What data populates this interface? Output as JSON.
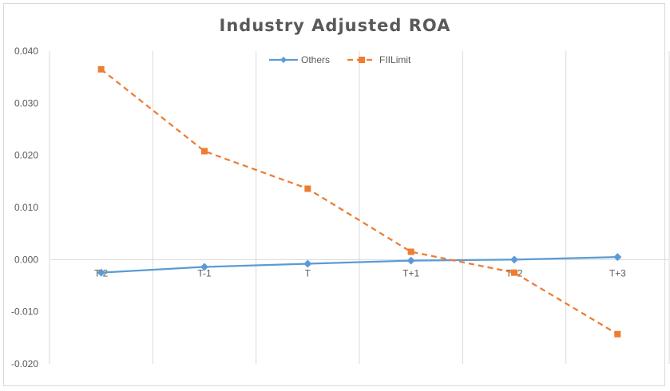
{
  "chart_data": {
    "type": "line",
    "title": "Industry Adjusted ROA",
    "xlabel": "",
    "ylabel": "",
    "categories": [
      "T-2",
      "T-1",
      "T",
      "T+1",
      "T+2",
      "T+3"
    ],
    "ylim": [
      -0.02,
      0.04
    ],
    "yticks": [
      "-0.020",
      "-0.010",
      "0.000",
      "0.010",
      "0.020",
      "0.030",
      "0.040"
    ],
    "grid": "vertical",
    "legend": "top-center",
    "series": [
      {
        "name": "Others",
        "color": "#5b9bd5",
        "style": "solid",
        "marker": "diamond",
        "values": [
          -0.0025,
          -0.0014,
          -0.0008,
          -0.0002,
          0.0,
          0.0005
        ]
      },
      {
        "name": "FIILimit",
        "color": "#ed7d31",
        "style": "dashed",
        "marker": "square",
        "values": [
          0.0365,
          0.0208,
          0.0136,
          0.0015,
          -0.0025,
          -0.0143
        ]
      }
    ]
  }
}
